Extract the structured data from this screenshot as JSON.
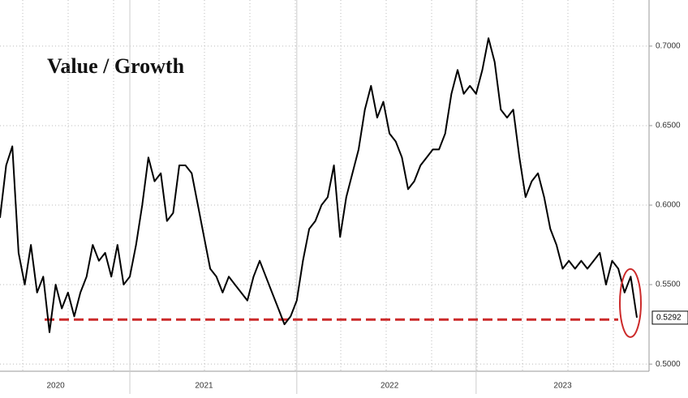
{
  "chart_data": {
    "type": "line",
    "title": "Value / Growth",
    "categories": [
      null,
      null,
      null,
      null,
      null,
      null,
      null,
      null,
      null,
      "2020",
      null,
      null,
      null,
      null,
      null,
      null,
      null,
      null,
      null,
      null,
      null,
      null,
      null,
      null,
      null,
      null,
      null,
      null,
      null,
      null,
      null,
      null,
      null,
      "2021",
      null,
      null,
      null,
      null,
      null,
      null,
      null,
      null,
      null,
      null,
      null,
      null,
      null,
      null,
      null,
      null,
      null,
      null,
      null,
      null,
      null,
      null,
      null,
      null,
      null,
      null,
      null,
      null,
      null,
      "2022",
      null,
      null,
      null,
      null,
      null,
      null,
      null,
      null,
      null,
      null,
      null,
      null,
      null,
      null,
      null,
      null,
      null,
      null,
      null,
      null,
      null,
      null,
      null,
      null,
      null,
      null,
      null,
      "2023",
      null,
      null,
      null,
      null,
      null,
      null,
      null,
      null,
      null,
      null,
      null,
      null
    ],
    "series": [
      {
        "name": "Value / Growth",
        "color": "#000000",
        "values": [
          0.592,
          0.625,
          0.637,
          0.57,
          0.55,
          0.575,
          0.545,
          0.555,
          0.52,
          0.55,
          0.535,
          0.545,
          0.53,
          0.545,
          0.555,
          0.575,
          0.565,
          0.57,
          0.555,
          0.575,
          0.55,
          0.555,
          0.575,
          0.6,
          0.63,
          0.615,
          0.62,
          0.59,
          0.595,
          0.625,
          0.625,
          0.62,
          0.6,
          0.58,
          0.56,
          0.555,
          0.545,
          0.555,
          0.55,
          0.545,
          0.54,
          0.555,
          0.565,
          0.555,
          0.545,
          0.535,
          0.525,
          0.53,
          0.54,
          0.565,
          0.585,
          0.59,
          0.6,
          0.605,
          0.625,
          0.58,
          0.605,
          0.62,
          0.635,
          0.66,
          0.675,
          0.655,
          0.665,
          0.645,
          0.64,
          0.63,
          0.61,
          0.615,
          0.625,
          0.63,
          0.635,
          0.635,
          0.645,
          0.67,
          0.685,
          0.67,
          0.675,
          0.67,
          0.685,
          0.705,
          0.69,
          0.66,
          0.655,
          0.66,
          0.63,
          0.605,
          0.615,
          0.62,
          0.605,
          0.585,
          0.575,
          0.56,
          0.565,
          0.56,
          0.565,
          0.56,
          0.565,
          0.57,
          0.55,
          0.565,
          0.56,
          0.545,
          0.555,
          0.5292
        ]
      }
    ],
    "last_label": "0.5292",
    "hline": {
      "value": 0.528,
      "color": "#cc2a2a"
    },
    "ylim": [
      0.4955,
      0.729
    ],
    "yticks": [
      {
        "value": 0.5,
        "label": "0.5000"
      },
      {
        "value": 0.55,
        "label": "0.5500"
      },
      {
        "value": 0.6,
        "label": "0.6000"
      },
      {
        "value": 0.65,
        "label": "0.6500"
      },
      {
        "value": 0.7,
        "label": "0.7000"
      }
    ],
    "grid": true
  }
}
